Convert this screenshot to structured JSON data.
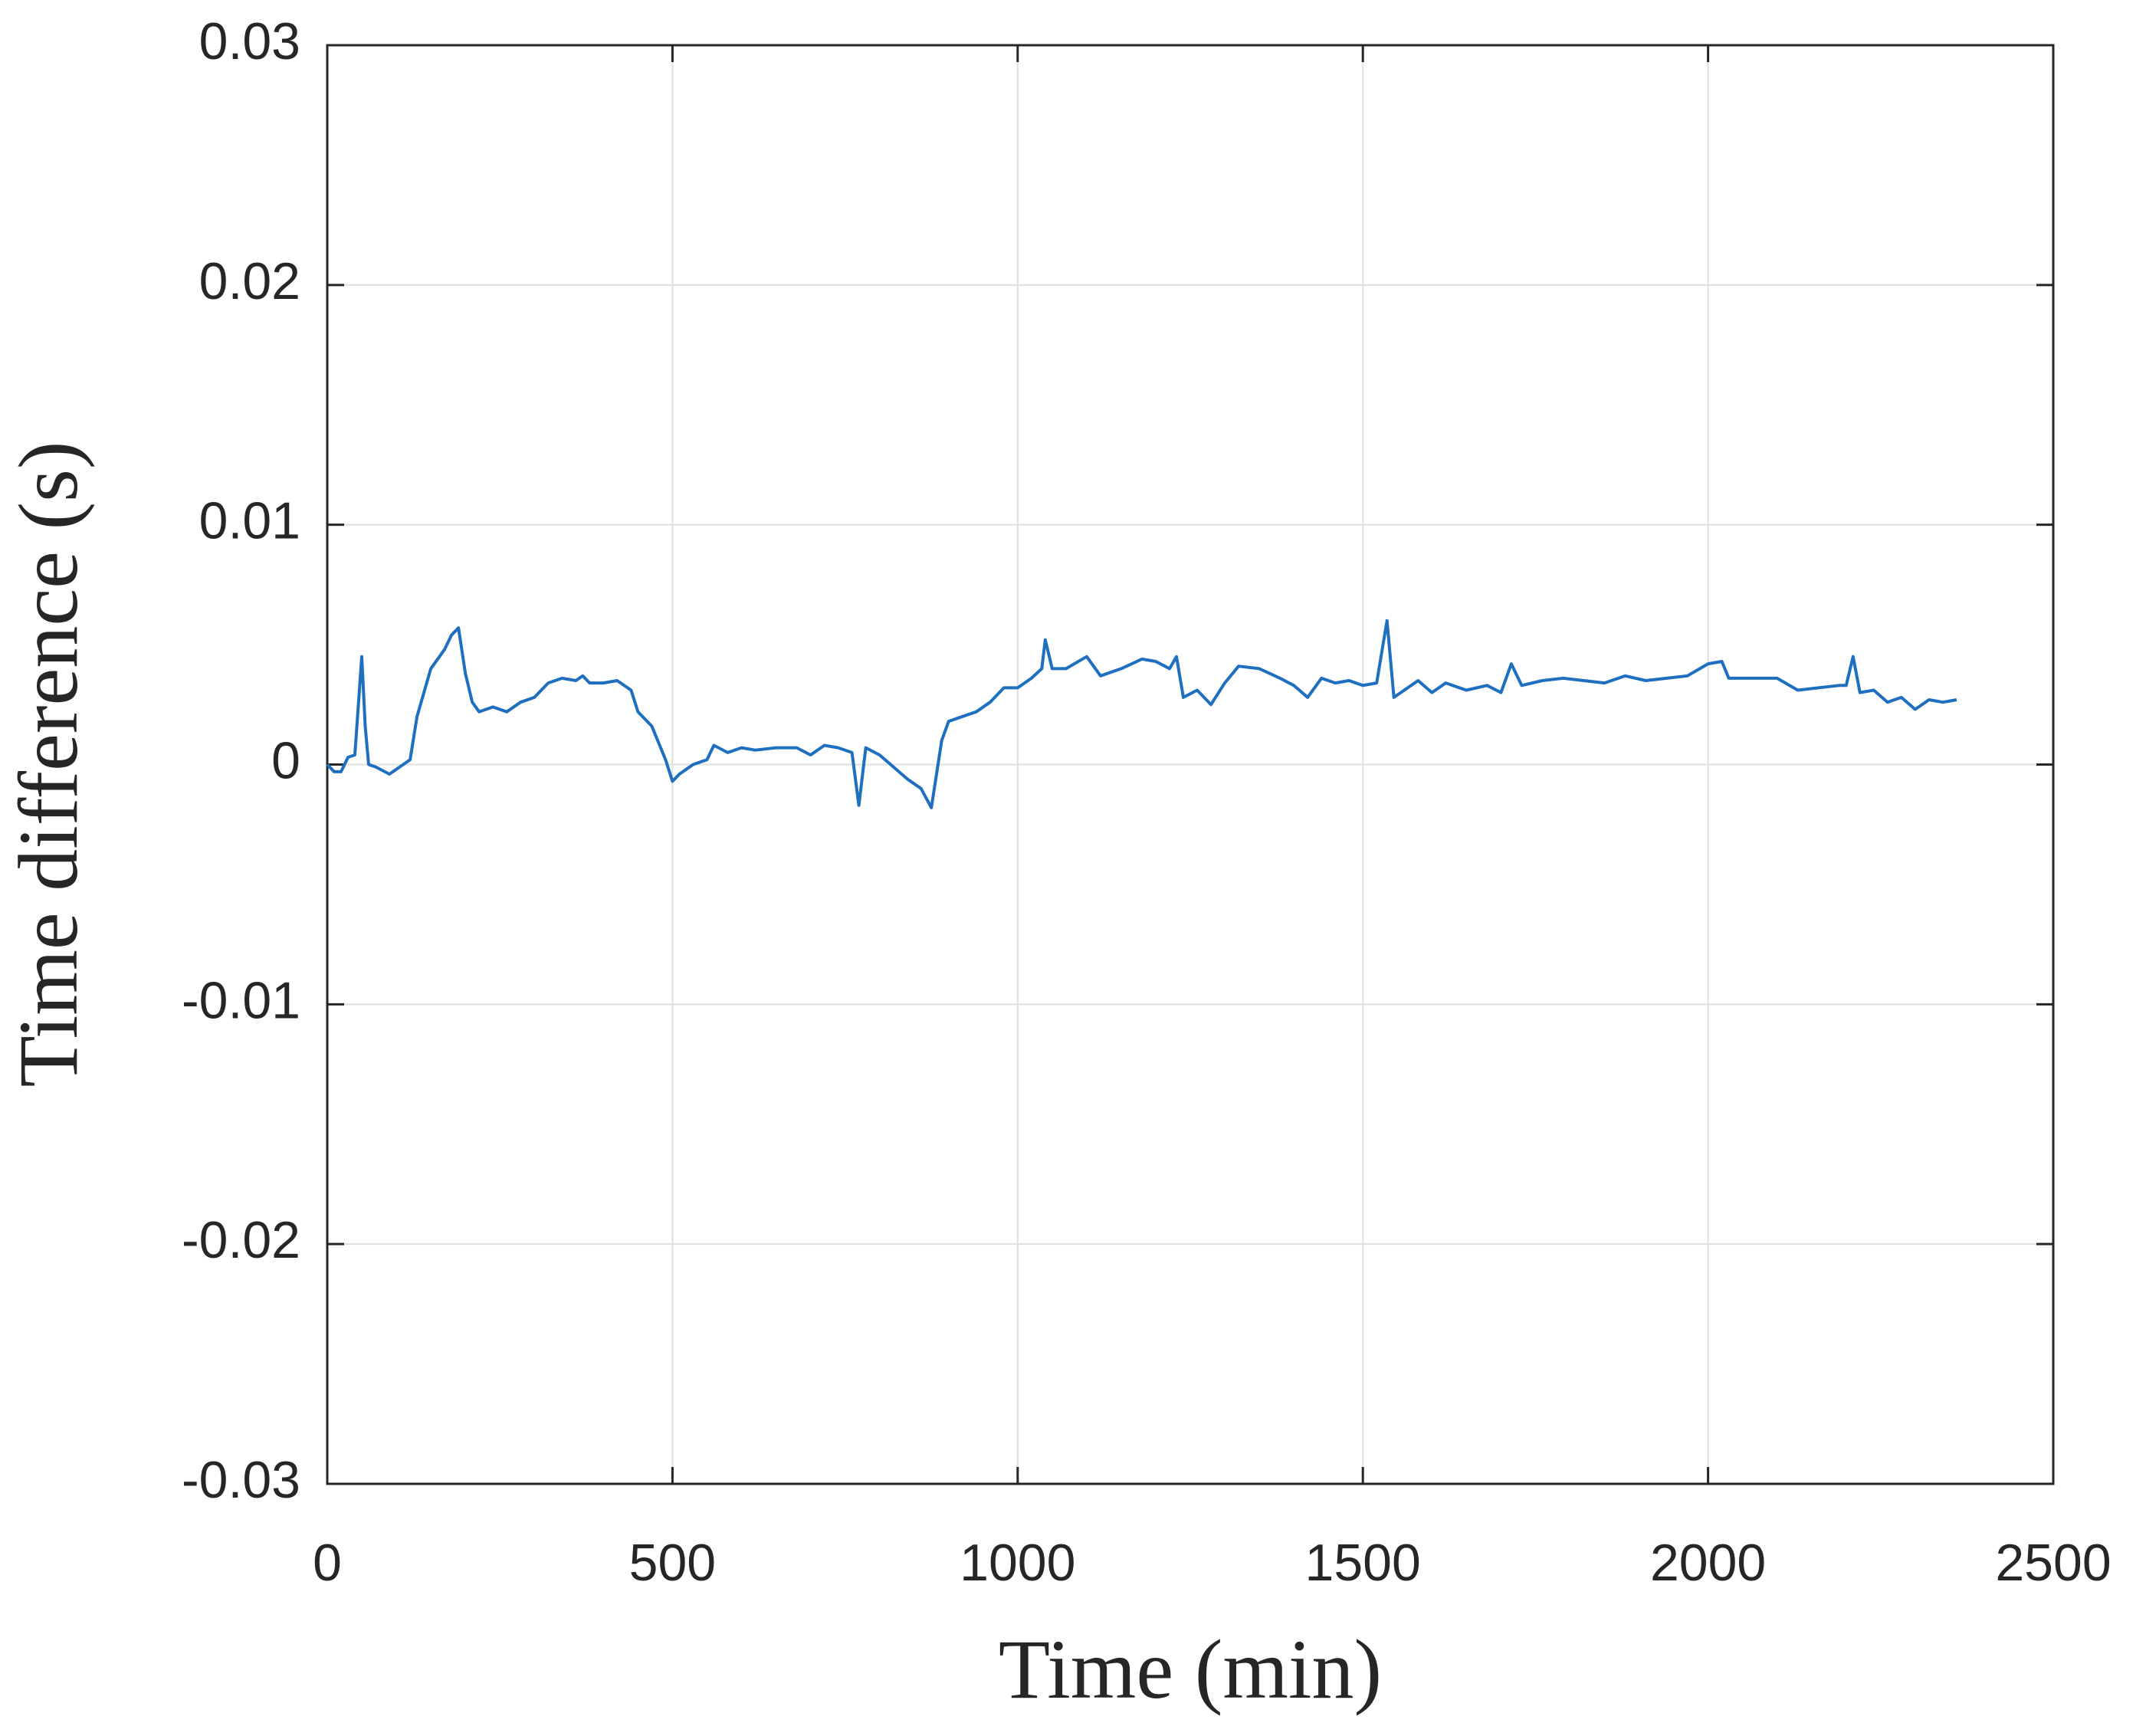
{
  "chart_data": {
    "type": "line",
    "xlabel": "Time (min)",
    "ylabel": "Time difference (s)",
    "xlim": [
      0,
      2500
    ],
    "xticks": [
      0,
      500,
      1000,
      1500,
      2000,
      2500
    ],
    "ylim": [
      -0.03,
      0.03
    ],
    "yticks": [
      -0.03,
      -0.02,
      -0.01,
      0,
      0.01,
      0.02,
      0.03
    ],
    "grid": true,
    "x": [
      0,
      10,
      20,
      30,
      40,
      50,
      55,
      60,
      70,
      90,
      110,
      120,
      130,
      150,
      170,
      180,
      190,
      200,
      210,
      220,
      240,
      260,
      280,
      300,
      320,
      340,
      360,
      370,
      380,
      400,
      420,
      440,
      450,
      470,
      490,
      500,
      510,
      530,
      550,
      560,
      580,
      600,
      620,
      650,
      680,
      700,
      720,
      740,
      760,
      770,
      780,
      800,
      820,
      840,
      860,
      875,
      890,
      900,
      920,
      940,
      960,
      980,
      1000,
      1020,
      1035,
      1040,
      1050,
      1070,
      1100,
      1120,
      1150,
      1180,
      1200,
      1220,
      1230,
      1240,
      1260,
      1280,
      1300,
      1320,
      1350,
      1380,
      1400,
      1420,
      1440,
      1460,
      1480,
      1500,
      1520,
      1535,
      1545,
      1560,
      1580,
      1600,
      1620,
      1650,
      1680,
      1700,
      1715,
      1730,
      1760,
      1790,
      1820,
      1850,
      1880,
      1910,
      1940,
      1970,
      2000,
      2020,
      2030,
      2060,
      2100,
      2130,
      2160,
      2190,
      2200,
      2210,
      2220,
      2240,
      2260,
      2280,
      2300,
      2320,
      2340,
      2360
    ],
    "series": [
      {
        "color": "#1f6fc0",
        "values": [
          0.0,
          -0.0003,
          -0.0003,
          0.0003,
          0.0004,
          0.0045,
          0.0016,
          0.0,
          -0.0001,
          -0.0004,
          0.0,
          0.0002,
          0.002,
          0.004,
          0.0048,
          0.0054,
          0.0057,
          0.0038,
          0.0026,
          0.0022,
          0.0024,
          0.0022,
          0.0026,
          0.0028,
          0.0034,
          0.0036,
          0.0035,
          0.0037,
          0.0034,
          0.0034,
          0.0035,
          0.0031,
          0.0022,
          0.0016,
          0.0002,
          -0.0007,
          -0.0004,
          0.0,
          0.0002,
          0.0008,
          0.0005,
          0.0007,
          0.0006,
          0.0007,
          0.0007,
          0.0004,
          0.0008,
          0.0007,
          0.0005,
          -0.0017,
          0.0007,
          0.0004,
          -0.0001,
          -0.0006,
          -0.001,
          -0.0018,
          0.001,
          0.0018,
          0.002,
          0.0022,
          0.0026,
          0.0032,
          0.0032,
          0.0036,
          0.004,
          0.0052,
          0.004,
          0.004,
          0.0045,
          0.0037,
          0.004,
          0.0044,
          0.0043,
          0.004,
          0.0045,
          0.0028,
          0.0031,
          0.0025,
          0.0034,
          0.0041,
          0.004,
          0.0036,
          0.0033,
          0.0028,
          0.0036,
          0.0034,
          0.0035,
          0.0033,
          0.0034,
          0.006,
          0.0028,
          0.0031,
          0.0035,
          0.003,
          0.0034,
          0.0031,
          0.0033,
          0.003,
          0.0042,
          0.0033,
          0.0035,
          0.0036,
          0.0035,
          0.0034,
          0.0037,
          0.0035,
          0.0036,
          0.0037,
          0.0042,
          0.0043,
          0.0036,
          0.0036,
          0.0036,
          0.0031,
          0.0032,
          0.0033,
          0.0033,
          0.0045,
          0.003,
          0.0031,
          0.0026,
          0.0028,
          0.0023,
          0.0027,
          0.0026,
          0.0027
        ]
      }
    ]
  }
}
